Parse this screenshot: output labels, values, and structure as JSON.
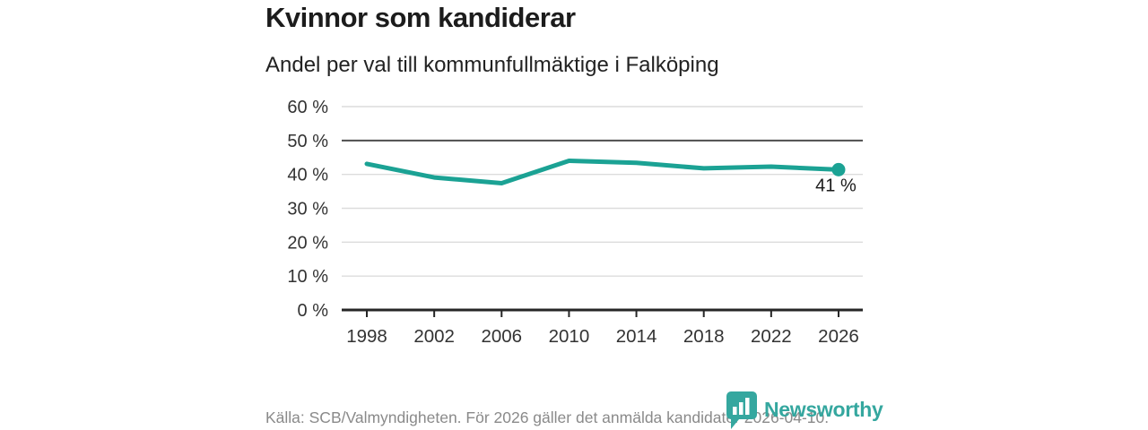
{
  "title": "Kvinnor som kandiderar",
  "subtitle": "Andel per val till kommunfullmäktige i Falköping",
  "footer": {
    "source_text": "Källa: SCB/Valmyndigheten. För 2026 gäller det anmälda kandidater 2026-04-10.",
    "logo_text": "Newsworthy"
  },
  "colors": {
    "line": "#1BA294",
    "logo": "#35A79F",
    "grid": "#dcdcdc",
    "ref_line": "#4d4d4d",
    "axis": "#262626",
    "tick_text": "#333333",
    "annotation_text": "#1a1a1a",
    "muted_text": "#8a8a8a"
  },
  "chart_data": {
    "type": "line",
    "title": "Kvinnor som kandiderar",
    "subtitle": "Andel per val till kommunfullmäktige i Falköping",
    "x": [
      1998,
      2002,
      2006,
      2010,
      2014,
      2018,
      2022,
      2026
    ],
    "values": [
      43.1,
      39.1,
      37.4,
      44.0,
      43.4,
      41.8,
      42.3,
      41.4
    ],
    "unit": "%",
    "xlabel": "",
    "ylabel": "",
    "ylim": [
      0,
      60
    ],
    "yticks": [
      0,
      10,
      20,
      30,
      40,
      50,
      60
    ],
    "ytick_suffix": " %",
    "grid": true,
    "reference_line_y": 50,
    "end_point_label": "41 %",
    "legend_position": "none"
  }
}
